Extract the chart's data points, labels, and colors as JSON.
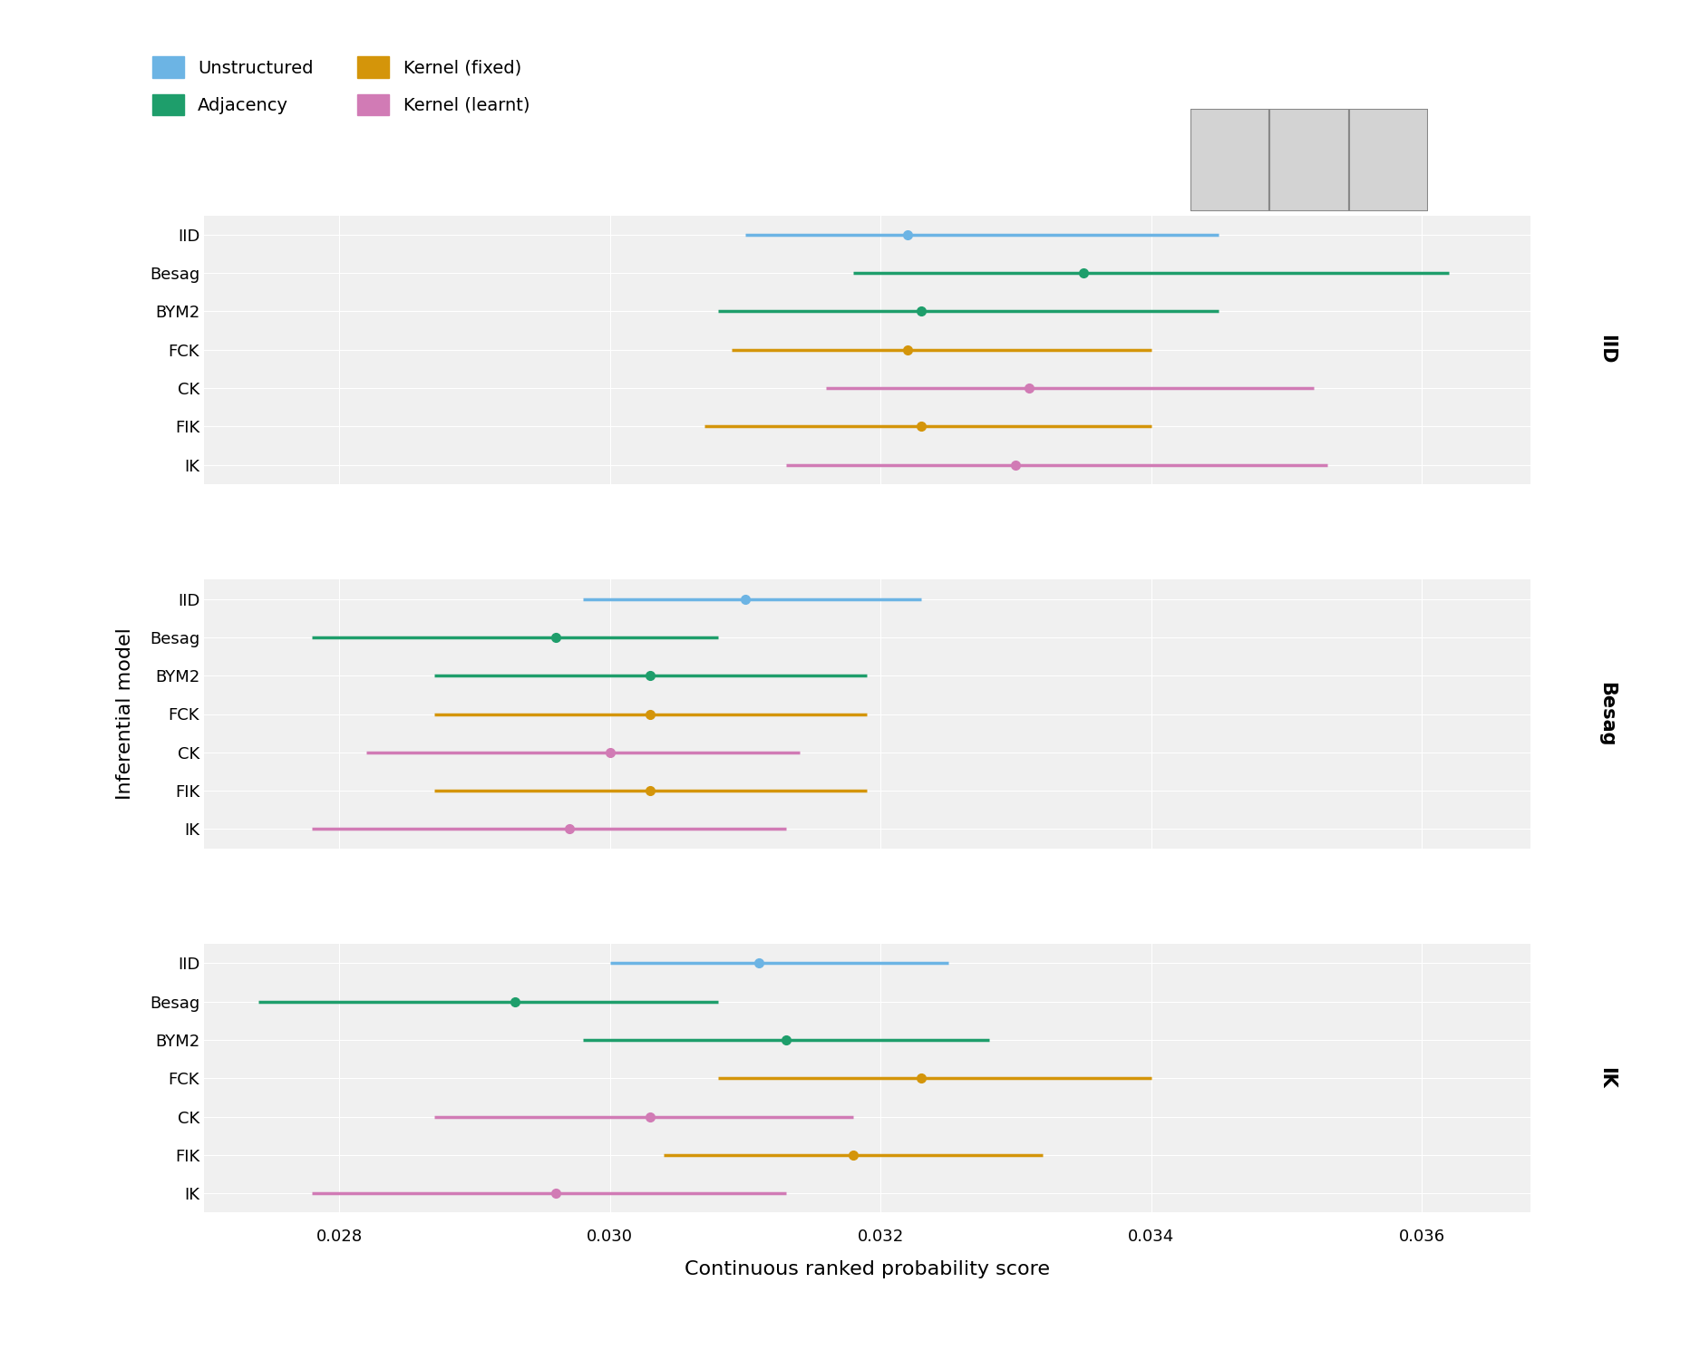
{
  "panel_labels": [
    "IID",
    "Besag",
    "IK"
  ],
  "infer_models": [
    "IID",
    "Besag",
    "BYM2",
    "FCK",
    "CK",
    "FIK",
    "IK"
  ],
  "colors": {
    "IID": "#6CB4E4",
    "Besag": "#1E9E6B",
    "BYM2": "#1E9E6B",
    "FCK": "#D4950A",
    "CK": "#D17BB5",
    "FIK": "#D4950A",
    "IK": "#D17BB5"
  },
  "panels": {
    "IID": {
      "IID": {
        "mean": 0.0322,
        "lo": 0.031,
        "hi": 0.0345
      },
      "Besag": {
        "mean": 0.0335,
        "lo": 0.0318,
        "hi": 0.0362
      },
      "BYM2": {
        "mean": 0.0323,
        "lo": 0.0308,
        "hi": 0.0345
      },
      "FCK": {
        "mean": 0.0322,
        "lo": 0.0309,
        "hi": 0.034
      },
      "CK": {
        "mean": 0.0331,
        "lo": 0.0316,
        "hi": 0.0352
      },
      "FIK": {
        "mean": 0.0323,
        "lo": 0.0307,
        "hi": 0.034
      },
      "IK": {
        "mean": 0.033,
        "lo": 0.0313,
        "hi": 0.0353
      }
    },
    "Besag": {
      "IID": {
        "mean": 0.031,
        "lo": 0.0298,
        "hi": 0.0323
      },
      "Besag": {
        "mean": 0.0296,
        "lo": 0.0278,
        "hi": 0.0308
      },
      "BYM2": {
        "mean": 0.0303,
        "lo": 0.0287,
        "hi": 0.0319
      },
      "FCK": {
        "mean": 0.0303,
        "lo": 0.0287,
        "hi": 0.0319
      },
      "CK": {
        "mean": 0.03,
        "lo": 0.0282,
        "hi": 0.0314
      },
      "FIK": {
        "mean": 0.0303,
        "lo": 0.0287,
        "hi": 0.0319
      },
      "IK": {
        "mean": 0.0297,
        "lo": 0.0278,
        "hi": 0.0313
      }
    },
    "IK": {
      "IID": {
        "mean": 0.0311,
        "lo": 0.03,
        "hi": 0.0325
      },
      "Besag": {
        "mean": 0.0293,
        "lo": 0.0274,
        "hi": 0.0308
      },
      "BYM2": {
        "mean": 0.0313,
        "lo": 0.0298,
        "hi": 0.0328
      },
      "FCK": {
        "mean": 0.0323,
        "lo": 0.0308,
        "hi": 0.034
      },
      "CK": {
        "mean": 0.0303,
        "lo": 0.0287,
        "hi": 0.0318
      },
      "FIK": {
        "mean": 0.0318,
        "lo": 0.0304,
        "hi": 0.0332
      },
      "IK": {
        "mean": 0.0296,
        "lo": 0.0278,
        "hi": 0.0313
      }
    }
  },
  "xlabel": "Continuous ranked probability score",
  "ylabel": "Inferential model",
  "xlim": [
    0.027,
    0.0368
  ],
  "xticks": [
    0.028,
    0.03,
    0.032,
    0.034,
    0.036
  ],
  "xtick_labels": [
    "0.028",
    "0.030",
    "0.032",
    "0.034",
    "0.036"
  ],
  "legend_labels": [
    "Unstructured",
    "Adjacency",
    "Kernel (fixed)",
    "Kernel (learnt)"
  ],
  "legend_colors": [
    "#6CB4E4",
    "#1E9E6B",
    "#D4950A",
    "#D17BB5"
  ],
  "bg_color": "#F0F0F0",
  "grid_color": "white"
}
